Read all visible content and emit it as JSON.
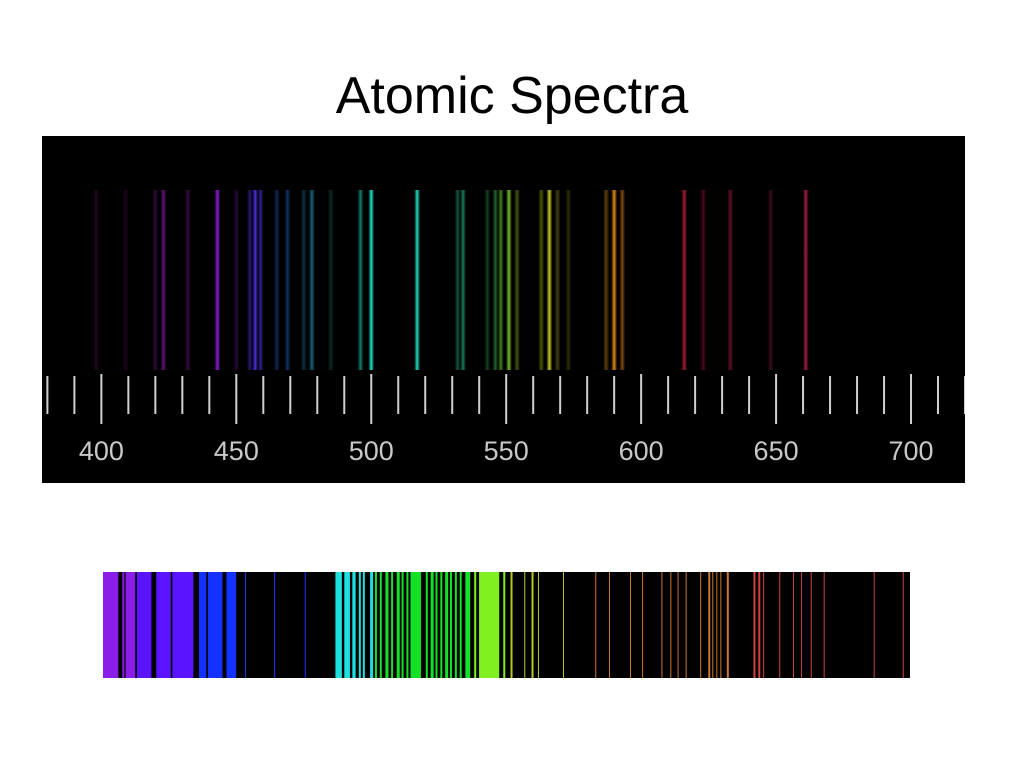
{
  "title": "Atomic Spectra",
  "emission_spectrum": {
    "axis_min": 378,
    "axis_max": 720,
    "labeled_ticks": [
      "400",
      "450",
      "500",
      "550",
      "600",
      "650",
      "700"
    ],
    "tick_step": 10,
    "lines": [
      {
        "nm": 398,
        "color": "#3a0a3a",
        "intensity": 0.6
      },
      {
        "nm": 409,
        "color": "#3a0a3a",
        "intensity": 0.5
      },
      {
        "nm": 420,
        "color": "#55115a",
        "intensity": 0.6
      },
      {
        "nm": 423,
        "color": "#6a1380",
        "intensity": 0.9
      },
      {
        "nm": 432,
        "color": "#4a0f5a",
        "intensity": 0.7
      },
      {
        "nm": 443,
        "color": "#8a1dd8",
        "intensity": 1.0
      },
      {
        "nm": 450,
        "color": "#3a0f5a",
        "intensity": 0.6
      },
      {
        "nm": 455,
        "color": "#3a22a0",
        "intensity": 0.7
      },
      {
        "nm": 457,
        "color": "#4a2ee0",
        "intensity": 1.0
      },
      {
        "nm": 459,
        "color": "#3a28b0",
        "intensity": 0.8
      },
      {
        "nm": 465,
        "color": "#233e8a",
        "intensity": 0.6
      },
      {
        "nm": 469,
        "color": "#1a4a90",
        "intensity": 0.7
      },
      {
        "nm": 475,
        "color": "#13506a",
        "intensity": 0.6
      },
      {
        "nm": 478,
        "color": "#1a6a8a",
        "intensity": 0.9
      },
      {
        "nm": 485,
        "color": "#13443a",
        "intensity": 0.6
      },
      {
        "nm": 496,
        "color": "#169b85",
        "intensity": 0.8
      },
      {
        "nm": 500,
        "color": "#1ee0c4",
        "intensity": 1.0
      },
      {
        "nm": 517,
        "color": "#20d8b8",
        "intensity": 1.0
      },
      {
        "nm": 532,
        "color": "#1a6a50",
        "intensity": 0.8
      },
      {
        "nm": 534,
        "color": "#1a8a60",
        "intensity": 0.9
      },
      {
        "nm": 543,
        "color": "#225a30",
        "intensity": 0.7
      },
      {
        "nm": 546,
        "color": "#2a7a3a",
        "intensity": 0.8
      },
      {
        "nm": 548,
        "color": "#4a8a20",
        "intensity": 0.9
      },
      {
        "nm": 551,
        "color": "#7ab828",
        "intensity": 1.0
      },
      {
        "nm": 554,
        "color": "#5a7a1a",
        "intensity": 0.7
      },
      {
        "nm": 563,
        "color": "#6a7a10",
        "intensity": 0.7
      },
      {
        "nm": 566,
        "color": "#c8c820",
        "intensity": 1.0
      },
      {
        "nm": 569,
        "color": "#6a6a10",
        "intensity": 0.6
      },
      {
        "nm": 573,
        "color": "#4a4a10",
        "intensity": 0.6
      },
      {
        "nm": 587,
        "color": "#8a5a10",
        "intensity": 0.7
      },
      {
        "nm": 590,
        "color": "#e08a18",
        "intensity": 1.0
      },
      {
        "nm": 593,
        "color": "#a05a10",
        "intensity": 0.8
      },
      {
        "nm": 616,
        "color": "#b0203a",
        "intensity": 0.9
      },
      {
        "nm": 623,
        "color": "#7a1030",
        "intensity": 0.6
      },
      {
        "nm": 633,
        "color": "#8a1535",
        "intensity": 0.7
      },
      {
        "nm": 648,
        "color": "#6a1030",
        "intensity": 0.6
      },
      {
        "nm": 661,
        "color": "#b01e45",
        "intensity": 0.9
      }
    ]
  },
  "line_strip": {
    "colors": {
      "violet": "#8a1ee8",
      "indigo": "#5a14ff",
      "blue": "#1432ff",
      "cyan": "#1ee0e0",
      "green": "#14e028",
      "lime": "#80f020",
      "yellow": "#b8c820",
      "orange": "#c87830",
      "red": "#d04040"
    },
    "bands": [
      {
        "from": 0.0,
        "to": 0.019,
        "color": "violet"
      },
      {
        "from": 0.028,
        "to": 0.04,
        "color": "violet"
      },
      {
        "from": 0.042,
        "to": 0.06,
        "color": "indigo"
      },
      {
        "from": 0.066,
        "to": 0.084,
        "color": "indigo"
      },
      {
        "from": 0.086,
        "to": 0.112,
        "color": "indigo"
      },
      {
        "from": 0.119,
        "to": 0.128,
        "color": "blue"
      },
      {
        "from": 0.13,
        "to": 0.148,
        "color": "blue"
      },
      {
        "from": 0.153,
        "to": 0.165,
        "color": "blue"
      },
      {
        "from": 0.29,
        "to": 0.296,
        "color": "cyan"
      },
      {
        "from": 0.299,
        "to": 0.306,
        "color": "cyan"
      },
      {
        "from": 0.309,
        "to": 0.313,
        "color": "cyan"
      },
      {
        "from": 0.381,
        "to": 0.394,
        "color": "green"
      },
      {
        "from": 0.449,
        "to": 0.455,
        "color": "green"
      },
      {
        "from": 0.466,
        "to": 0.491,
        "color": "lime"
      }
    ],
    "lines": [
      {
        "x": 0.024,
        "color": "violet",
        "w": 2
      },
      {
        "x": 0.176,
        "color": "blue",
        "w": 1
      },
      {
        "x": 0.212,
        "color": "blue",
        "w": 1
      },
      {
        "x": 0.25,
        "color": "blue",
        "w": 1
      },
      {
        "x": 0.288,
        "color": "cyan",
        "w": 2
      },
      {
        "x": 0.317,
        "color": "cyan",
        "w": 2
      },
      {
        "x": 0.322,
        "color": "cyan",
        "w": 2
      },
      {
        "x": 0.331,
        "color": "cyan",
        "w": 3
      },
      {
        "x": 0.337,
        "color": "green",
        "w": 2
      },
      {
        "x": 0.343,
        "color": "green",
        "w": 2
      },
      {
        "x": 0.35,
        "color": "green",
        "w": 3
      },
      {
        "x": 0.357,
        "color": "green",
        "w": 2
      },
      {
        "x": 0.364,
        "color": "green",
        "w": 3
      },
      {
        "x": 0.37,
        "color": "green",
        "w": 2
      },
      {
        "x": 0.376,
        "color": "green",
        "w": 2
      },
      {
        "x": 0.4,
        "color": "green",
        "w": 2
      },
      {
        "x": 0.406,
        "color": "green",
        "w": 3
      },
      {
        "x": 0.412,
        "color": "green",
        "w": 2
      },
      {
        "x": 0.418,
        "color": "green",
        "w": 2
      },
      {
        "x": 0.424,
        "color": "green",
        "w": 3
      },
      {
        "x": 0.43,
        "color": "green",
        "w": 2
      },
      {
        "x": 0.436,
        "color": "green",
        "w": 2
      },
      {
        "x": 0.442,
        "color": "green",
        "w": 2
      },
      {
        "x": 0.46,
        "color": "lime",
        "w": 2
      },
      {
        "x": 0.496,
        "color": "lime",
        "w": 2
      },
      {
        "x": 0.505,
        "color": "yellow",
        "w": 2
      },
      {
        "x": 0.522,
        "color": "yellow",
        "w": 1
      },
      {
        "x": 0.531,
        "color": "yellow",
        "w": 2
      },
      {
        "x": 0.539,
        "color": "yellow",
        "w": 1
      },
      {
        "x": 0.57,
        "color": "yellow",
        "w": 1
      },
      {
        "x": 0.61,
        "color": "orange",
        "w": 1
      },
      {
        "x": 0.627,
        "color": "orange",
        "w": 1
      },
      {
        "x": 0.653,
        "color": "orange",
        "w": 1
      },
      {
        "x": 0.668,
        "color": "orange",
        "w": 1
      },
      {
        "x": 0.692,
        "color": "orange",
        "w": 1
      },
      {
        "x": 0.703,
        "color": "orange",
        "w": 1
      },
      {
        "x": 0.712,
        "color": "orange",
        "w": 1
      },
      {
        "x": 0.722,
        "color": "orange",
        "w": 1
      },
      {
        "x": 0.74,
        "color": "orange",
        "w": 1
      },
      {
        "x": 0.75,
        "color": "orange",
        "w": 2
      },
      {
        "x": 0.755,
        "color": "orange",
        "w": 1
      },
      {
        "x": 0.76,
        "color": "orange",
        "w": 1
      },
      {
        "x": 0.765,
        "color": "orange",
        "w": 1
      },
      {
        "x": 0.773,
        "color": "orange",
        "w": 2
      },
      {
        "x": 0.806,
        "color": "red",
        "w": 2
      },
      {
        "x": 0.812,
        "color": "red",
        "w": 2
      },
      {
        "x": 0.818,
        "color": "red",
        "w": 1
      },
      {
        "x": 0.838,
        "color": "red",
        "w": 1
      },
      {
        "x": 0.855,
        "color": "red",
        "w": 1
      },
      {
        "x": 0.865,
        "color": "red",
        "w": 1
      },
      {
        "x": 0.877,
        "color": "red",
        "w": 1
      },
      {
        "x": 0.893,
        "color": "red",
        "w": 1
      },
      {
        "x": 0.955,
        "color": "red",
        "w": 1
      },
      {
        "x": 0.991,
        "color": "red",
        "w": 1
      }
    ]
  }
}
